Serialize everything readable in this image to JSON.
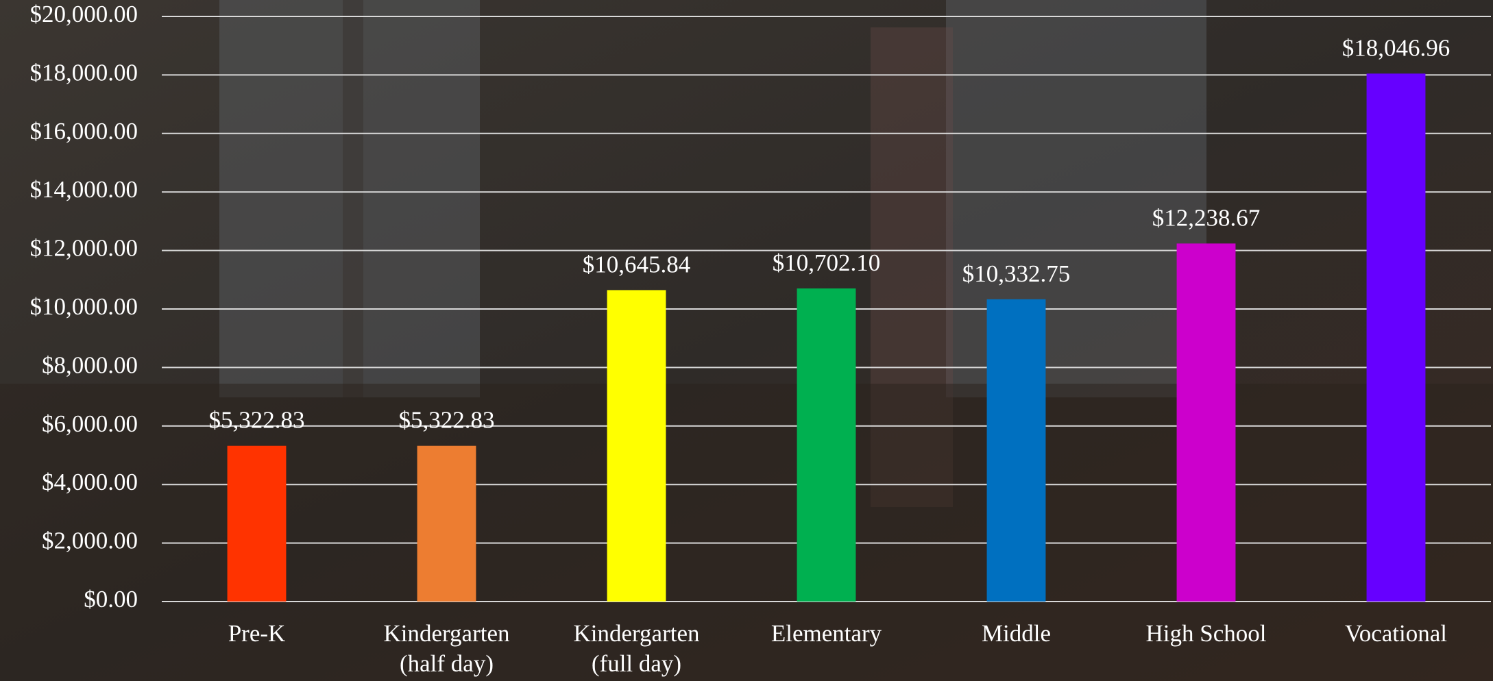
{
  "chart_data": {
    "type": "bar",
    "categories": [
      "Pre-K",
      "Kindergarten (half day)",
      "Kindergarten (full day)",
      "Elementary",
      "Middle",
      "High School",
      "Vocational"
    ],
    "values": [
      5322.83,
      5322.83,
      10645.84,
      10702.1,
      10332.75,
      12238.67,
      18046.96
    ],
    "value_labels": [
      "$5,322.83",
      "$5,322.83",
      "$10,645.84",
      "$10,702.10",
      "$10,332.75",
      "$12,238.67",
      "$18,046.96"
    ],
    "colors": [
      "#ff3300",
      "#ed7d31",
      "#ffff00",
      "#00b050",
      "#0070c0",
      "#cc00cc",
      "#6600ff"
    ],
    "ylim": [
      0,
      20000
    ],
    "yticks": [
      {
        "value": 0,
        "label": "$0.00"
      },
      {
        "value": 2000,
        "label": "$2,000.00"
      },
      {
        "value": 4000,
        "label": "$4,000.00"
      },
      {
        "value": 6000,
        "label": "$6,000.00"
      },
      {
        "value": 8000,
        "label": "$8,000.00"
      },
      {
        "value": 10000,
        "label": "$10,000.00"
      },
      {
        "value": 12000,
        "label": "$12,000.00"
      },
      {
        "value": 14000,
        "label": "$14,000.00"
      },
      {
        "value": 16000,
        "label": "$16,000.00"
      },
      {
        "value": 18000,
        "label": "$18,000.00"
      },
      {
        "value": 20000,
        "label": "$20,000.00"
      }
    ],
    "grid": true
  }
}
